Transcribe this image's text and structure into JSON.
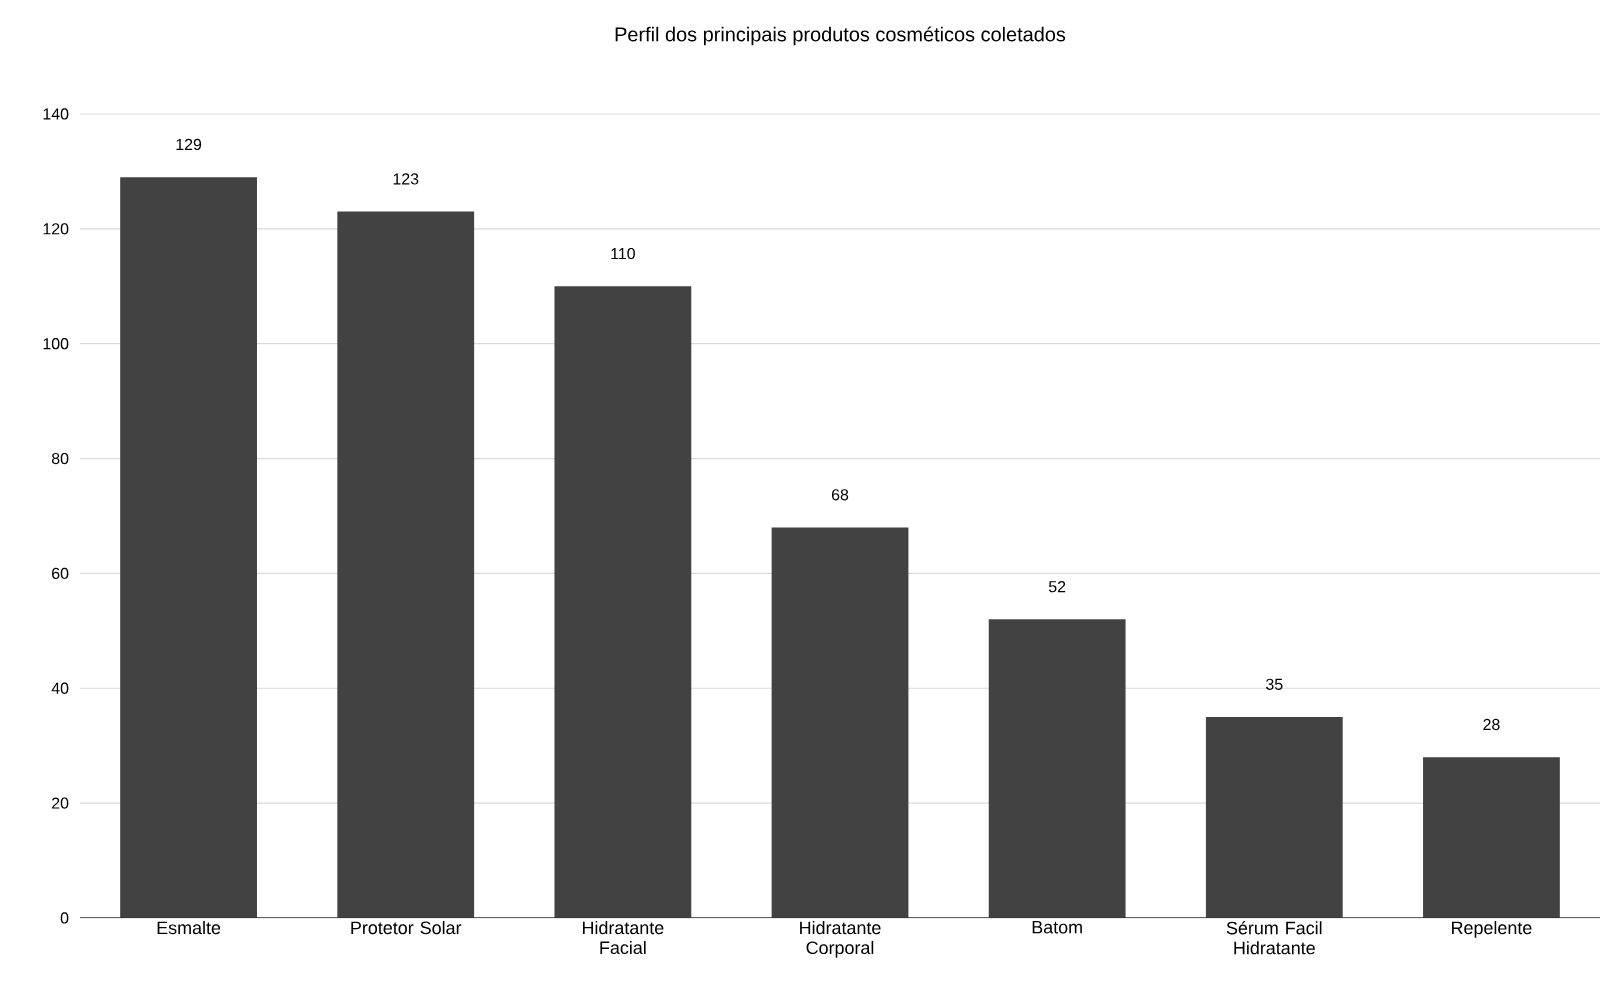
{
  "chart_data": {
    "type": "bar",
    "title": "Perfil dos principais produtos cosméticos coletados",
    "categories": [
      "Esmalte",
      "Protetor Solar",
      "Hidratante Facial",
      "Hidratante Corporal",
      "Batom",
      "Sérum Facil Hidratante",
      "Repelente"
    ],
    "values": [
      129,
      123,
      110,
      68,
      52,
      35,
      28
    ],
    "value_labels": [
      "129",
      "123",
      "110",
      "68",
      "52",
      "35",
      "28"
    ],
    "color": "#424242",
    "ylim": [
      0,
      140
    ],
    "yticks": [
      0,
      20,
      40,
      60,
      80,
      100,
      120,
      140
    ],
    "grid": "y"
  }
}
